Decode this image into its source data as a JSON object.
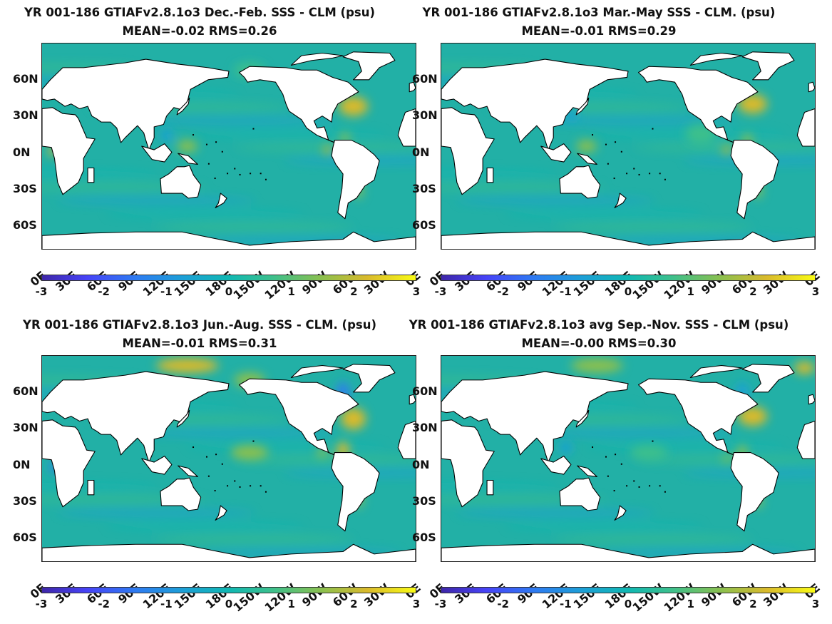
{
  "panels": [
    {
      "title": "YR 001-186 GTIAFv2.8.1o3  Dec.-Feb. SSS - CLM (psu)",
      "stats": "MEAN=-0.02   RMS=0.26",
      "mean": -0.02,
      "rms": 0.26
    },
    {
      "title": "YR 001-186 GTIAFv2.8.1o3 Mar.-May SSS - CLM. (psu)",
      "stats": "MEAN=-0.01   RMS=0.29",
      "mean": -0.01,
      "rms": 0.29
    },
    {
      "title": "YR 001-186 GTIAFv2.8.1o3 Jun.-Aug. SSS - CLM. (psu)",
      "stats": "MEAN=-0.01   RMS=0.31",
      "mean": -0.01,
      "rms": 0.31
    },
    {
      "title": "YR 001-186 GTIAFv2.8.1o3 avg Sep.-Nov. SSS - CLM (psu)",
      "stats": "MEAN=-0.00   RMS=0.30",
      "mean": -0.0,
      "rms": 0.3
    }
  ],
  "latitude_labels": [
    "60N",
    "30N",
    "0N",
    "30S",
    "60S"
  ],
  "longitude_labels": [
    "0E",
    "30E",
    "60E",
    "90E",
    "120E",
    "150E",
    "180E",
    "150W",
    "120W",
    "90W",
    "60W",
    "30W",
    "0E"
  ],
  "colorbar": {
    "min": -3,
    "max": 3,
    "tick_labels": [
      "-3",
      "-2",
      "-1",
      "0",
      "1",
      "2",
      "3"
    ],
    "colormap": [
      "#3e26a8",
      "#4743f7",
      "#2e7bf2",
      "#1ca0d6",
      "#10b8b3",
      "#3ec08b",
      "#8cc04e",
      "#d9ba2c",
      "#f9fb15"
    ]
  },
  "colors": {
    "ocean_base": "#22b0a6",
    "land": "#ffffff",
    "coastline": "#000000"
  }
}
